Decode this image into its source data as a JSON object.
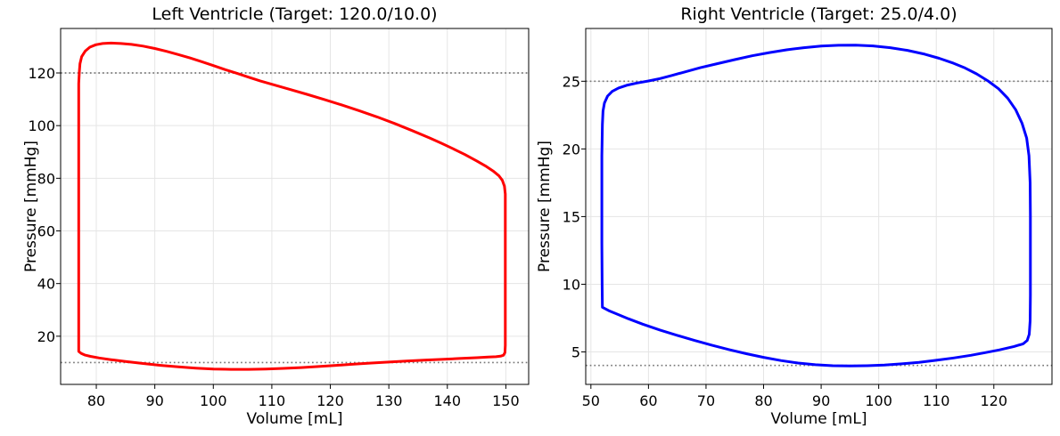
{
  "figure": {
    "background_color": "#ffffff",
    "axes_color": "#000000"
  },
  "chart_data": [
    {
      "type": "line",
      "title": "Left Ventricle (Target: 120.0/10.0)",
      "xlabel": "Volume [mL]",
      "ylabel": "Pressure [mmHg]",
      "xlim": [
        73.9,
        153.9
      ],
      "ylim": [
        1.7,
        136.9
      ],
      "xticks": [
        80,
        90,
        100,
        110,
        120,
        130,
        140,
        150
      ],
      "yticks": [
        20,
        40,
        60,
        80,
        100,
        120
      ],
      "grid": true,
      "legend": "none",
      "target_systolic": 120.0,
      "target_diastolic": 10.0,
      "target_lines": [
        120,
        10
      ],
      "target_line_style": "dotted",
      "target_line_color": "#777777",
      "line_color": "#ff0000",
      "series": [
        {
          "name": "lv-pv-loop",
          "closed": true,
          "points": [
            [
              77,
              14.2
            ],
            [
              77,
              20
            ],
            [
              77,
              30
            ],
            [
              77,
              45
            ],
            [
              77,
              62
            ],
            [
              77,
              80
            ],
            [
              77,
              96
            ],
            [
              77,
              108
            ],
            [
              77,
              116
            ],
            [
              77.1,
              120.5
            ],
            [
              77.2,
              123.5
            ],
            [
              77.5,
              126.2
            ],
            [
              78.1,
              128.3
            ],
            [
              78.9,
              129.8
            ],
            [
              79.9,
              130.7
            ],
            [
              81.1,
              131.2
            ],
            [
              82.5,
              131.35
            ],
            [
              84.2,
              131.2
            ],
            [
              86,
              130.85
            ],
            [
              88,
              130.2
            ],
            [
              90,
              129.3
            ],
            [
              92,
              128.2
            ],
            [
              94,
              127
            ],
            [
              96,
              125.7
            ],
            [
              98,
              124.3
            ],
            [
              100,
              122.8
            ],
            [
              102,
              121.3
            ],
            [
              104,
              119.9
            ],
            [
              106,
              118.4
            ],
            [
              108,
              117
            ],
            [
              110,
              115.7
            ],
            [
              113,
              113.8
            ],
            [
              116,
              111.9
            ],
            [
              119,
              109.9
            ],
            [
              122,
              107.8
            ],
            [
              125,
              105.6
            ],
            [
              128,
              103.3
            ],
            [
              131,
              100.8
            ],
            [
              134,
              98.1
            ],
            [
              137,
              95.3
            ],
            [
              139,
              93.3
            ],
            [
              141,
              91.2
            ],
            [
              143,
              89
            ],
            [
              145,
              86.6
            ],
            [
              146.5,
              84.7
            ],
            [
              147.8,
              82.8
            ],
            [
              148.8,
              81
            ],
            [
              149.4,
              79.2
            ],
            [
              149.75,
              77
            ],
            [
              149.9,
              74
            ],
            [
              149.9,
              68
            ],
            [
              149.9,
              58
            ],
            [
              149.9,
              46
            ],
            [
              149.9,
              34
            ],
            [
              149.9,
              24
            ],
            [
              149.9,
              16.5
            ],
            [
              149.85,
              13.8
            ],
            [
              149.6,
              12.8
            ],
            [
              149.1,
              12.4
            ],
            [
              148.3,
              12.2
            ],
            [
              147,
              12.1
            ],
            [
              145,
              11.85
            ],
            [
              142,
              11.55
            ],
            [
              139,
              11.2
            ],
            [
              136,
              10.9
            ],
            [
              133,
              10.55
            ],
            [
              130,
              10.2
            ],
            [
              127,
              9.8
            ],
            [
              124,
              9.4
            ],
            [
              121,
              8.95
            ],
            [
              118,
              8.5
            ],
            [
              115,
              8.1
            ],
            [
              112,
              7.8
            ],
            [
              109,
              7.55
            ],
            [
              106,
              7.4
            ],
            [
              103,
              7.4
            ],
            [
              100,
              7.55
            ],
            [
              97,
              7.9
            ],
            [
              94,
              8.35
            ],
            [
              91,
              8.95
            ],
            [
              88,
              9.65
            ],
            [
              85,
              10.4
            ],
            [
              82.5,
              11.1
            ],
            [
              80.5,
              11.75
            ],
            [
              79,
              12.35
            ],
            [
              78,
              12.9
            ],
            [
              77.4,
              13.5
            ]
          ]
        }
      ]
    },
    {
      "type": "line",
      "title": "Right Ventricle (Target: 25.0/4.0)",
      "xlabel": "Volume [mL]",
      "ylabel": "Pressure [mmHg]",
      "xlim": [
        49.1,
        130.1
      ],
      "ylim": [
        2.6,
        28.9
      ],
      "xticks": [
        50,
        60,
        70,
        80,
        90,
        100,
        110,
        120
      ],
      "yticks": [
        5,
        10,
        15,
        20,
        25
      ],
      "grid": true,
      "legend": "none",
      "target_systolic": 25.0,
      "target_diastolic": 4.0,
      "target_lines": [
        25,
        4
      ],
      "target_line_style": "dotted",
      "target_line_color": "#777777",
      "line_color": "#0000ff",
      "series": [
        {
          "name": "rv-pv-loop",
          "closed": true,
          "points": [
            [
              52,
              8.3
            ],
            [
              51.95,
              10
            ],
            [
              51.9,
              13
            ],
            [
              51.9,
              16.5
            ],
            [
              51.9,
              19.5
            ],
            [
              52,
              21.8
            ],
            [
              52.1,
              22.8
            ],
            [
              52.35,
              23.4
            ],
            [
              52.9,
              23.9
            ],
            [
              53.7,
              24.25
            ],
            [
              54.8,
              24.5
            ],
            [
              56.2,
              24.7
            ],
            [
              58,
              24.87
            ],
            [
              60,
              25.02
            ],
            [
              62,
              25.2
            ],
            [
              64,
              25.42
            ],
            [
              66,
              25.65
            ],
            [
              69,
              26
            ],
            [
              72,
              26.3
            ],
            [
              75,
              26.6
            ],
            [
              78,
              26.88
            ],
            [
              81,
              27.12
            ],
            [
              84,
              27.32
            ],
            [
              87,
              27.48
            ],
            [
              90,
              27.6
            ],
            [
              93,
              27.66
            ],
            [
              96,
              27.67
            ],
            [
              99,
              27.61
            ],
            [
              102,
              27.48
            ],
            [
              105,
              27.28
            ],
            [
              108,
              27
            ],
            [
              110.5,
              26.7
            ],
            [
              113,
              26.33
            ],
            [
              115,
              25.98
            ],
            [
              117,
              25.55
            ],
            [
              119,
              25.02
            ],
            [
              120.8,
              24.45
            ],
            [
              122.4,
              23.75
            ],
            [
              123.8,
              22.9
            ],
            [
              124.9,
              21.9
            ],
            [
              125.7,
              20.8
            ],
            [
              126.1,
              19.5
            ],
            [
              126.3,
              17.5
            ],
            [
              126.35,
              15
            ],
            [
              126.35,
              12
            ],
            [
              126.35,
              9.2
            ],
            [
              126.3,
              7.3
            ],
            [
              126.15,
              6.3
            ],
            [
              125.8,
              5.85
            ],
            [
              125.1,
              5.6
            ],
            [
              123.5,
              5.4
            ],
            [
              121,
              5.15
            ],
            [
              118.5,
              4.95
            ],
            [
              116,
              4.75
            ],
            [
              113,
              4.55
            ],
            [
              110,
              4.38
            ],
            [
              107,
              4.23
            ],
            [
              104,
              4.12
            ],
            [
              101,
              4.03
            ],
            [
              98,
              3.98
            ],
            [
              95,
              3.96
            ],
            [
              92,
              3.98
            ],
            [
              89,
              4.05
            ],
            [
              86,
              4.18
            ],
            [
              83,
              4.36
            ],
            [
              80,
              4.6
            ],
            [
              77,
              4.87
            ],
            [
              74,
              5.17
            ],
            [
              71,
              5.5
            ],
            [
              68,
              5.85
            ],
            [
              65,
              6.22
            ],
            [
              62,
              6.62
            ],
            [
              59,
              7.05
            ],
            [
              56.5,
              7.45
            ],
            [
              54.5,
              7.8
            ],
            [
              53.1,
              8.05
            ]
          ]
        }
      ]
    }
  ]
}
